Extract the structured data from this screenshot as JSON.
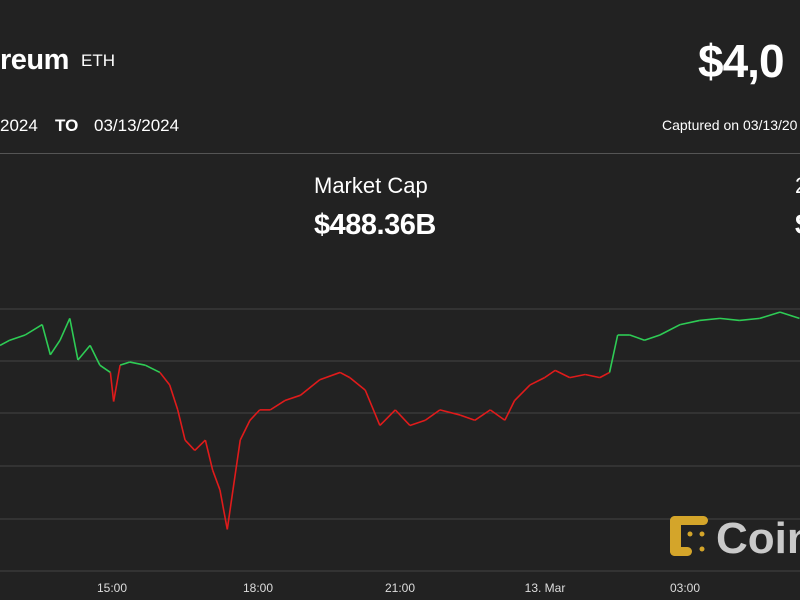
{
  "header": {
    "title": "reum",
    "ticker": "ETH",
    "price": "$4,0",
    "from_date": "2024",
    "to_label": "TO",
    "to_date": "03/13/2024",
    "captured": "Captured on 03/13/20"
  },
  "stats": {
    "market_cap_label": "Market Cap",
    "market_cap_value": "$488.36B",
    "right_label": "2",
    "right_value": "$"
  },
  "logo": {
    "text": "Coin",
    "color": "#d4a52a"
  },
  "colors": {
    "up": "#2ecc55",
    "down": "#e01b1b",
    "grid": "#444444",
    "background": "#222222"
  },
  "chart_data": {
    "type": "line",
    "title": "",
    "xlabel": "",
    "ylabel": "",
    "grid": true,
    "x_tick_labels": [
      "15:00",
      "18:00",
      "21:00",
      "13. Mar",
      "03:00"
    ],
    "reference_price": 4040,
    "ylim": [
      3850,
      4100
    ],
    "points": [
      [
        "12:42",
        4065
      ],
      [
        "12:54",
        4070
      ],
      [
        "13:13",
        4075
      ],
      [
        "13:34",
        4085
      ],
      [
        "13:44",
        4056
      ],
      [
        "13:56",
        4070
      ],
      [
        "14:08",
        4091
      ],
      [
        "14:18",
        4051
      ],
      [
        "14:33",
        4065
      ],
      [
        "14:45",
        4046
      ],
      [
        "14:58",
        4039
      ],
      [
        "15:02",
        4011
      ],
      [
        "15:10",
        4046
      ],
      [
        "15:22",
        4049
      ],
      [
        "15:41",
        4046
      ],
      [
        "15:59",
        4039
      ],
      [
        "16:11",
        4027
      ],
      [
        "16:21",
        4003
      ],
      [
        "16:30",
        3974
      ],
      [
        "16:42",
        3964
      ],
      [
        "16:55",
        3974
      ],
      [
        "17:04",
        3945
      ],
      [
        "17:13",
        3926
      ],
      [
        "17:22",
        3888
      ],
      [
        "17:29",
        3926
      ],
      [
        "17:38",
        3974
      ],
      [
        "17:50",
        3993
      ],
      [
        "18:02",
        4003
      ],
      [
        "18:15",
        4003
      ],
      [
        "18:33",
        4012
      ],
      [
        "18:52",
        4017
      ],
      [
        "19:16",
        4032
      ],
      [
        "19:41",
        4039
      ],
      [
        "19:53",
        4034
      ],
      [
        "20:12",
        4022
      ],
      [
        "20:30",
        3988
      ],
      [
        "20:49",
        4003
      ],
      [
        "21:07",
        3988
      ],
      [
        "21:26",
        3993
      ],
      [
        "21:44",
        4003
      ],
      [
        "22:09",
        3998
      ],
      [
        "22:27",
        3993
      ],
      [
        "22:46",
        4003
      ],
      [
        "23:04",
        3993
      ],
      [
        "23:16",
        4012
      ],
      [
        "23:35",
        4027
      ],
      [
        "23:53",
        4034
      ],
      [
        "00:06",
        4041
      ],
      [
        "00:24",
        4034
      ],
      [
        "00:43",
        4037
      ],
      [
        "01:01",
        4034
      ],
      [
        "01:13",
        4039
      ],
      [
        "01:23",
        4075
      ],
      [
        "01:38",
        4075
      ],
      [
        "01:56",
        4070
      ],
      [
        "02:15",
        4075
      ],
      [
        "02:40",
        4085
      ],
      [
        "03:04",
        4089
      ],
      [
        "03:29",
        4091
      ],
      [
        "03:53",
        4089
      ],
      [
        "04:18",
        4091
      ],
      [
        "04:43",
        4097
      ],
      [
        "05:07",
        4091
      ]
    ]
  }
}
